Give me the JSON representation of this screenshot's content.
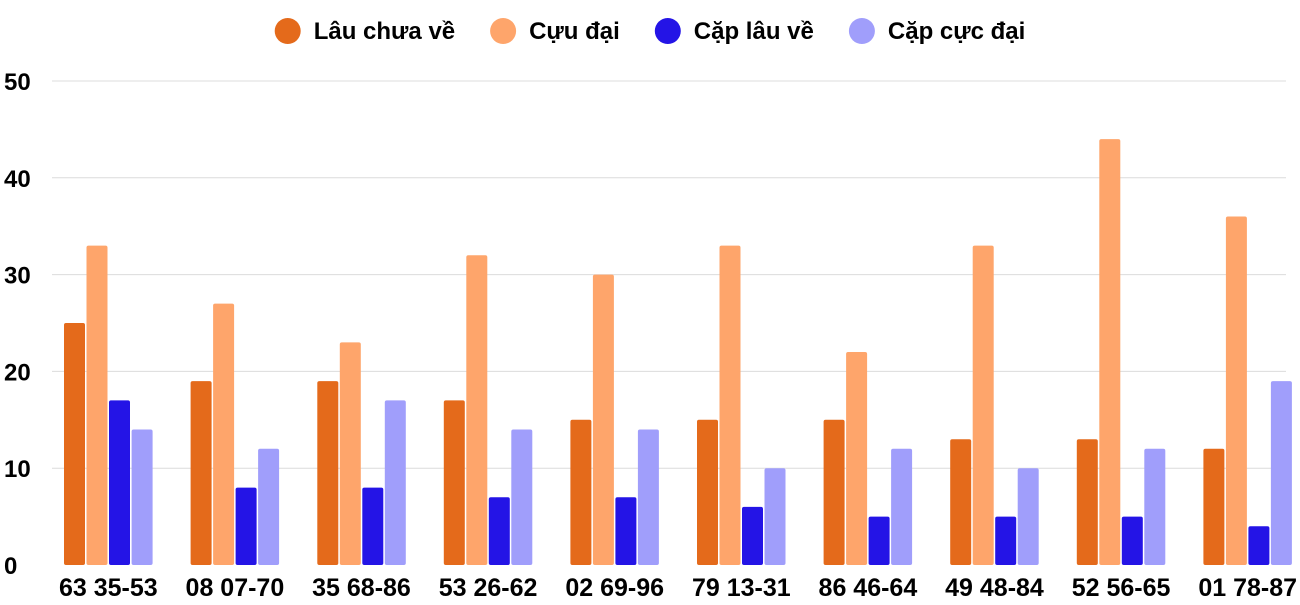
{
  "chart_data": {
    "type": "bar",
    "title": "",
    "xlabel": "",
    "ylabel": "",
    "ylim": [
      0,
      50
    ],
    "yticks": [
      0,
      10,
      20,
      30,
      40,
      50
    ],
    "grid": true,
    "legend_position": "top-center",
    "categories": [
      "63 35-53",
      "08 07-70",
      "35 68-86",
      "53 26-62",
      "02 69-96",
      "79 13-31",
      "86 46-64",
      "49 48-84",
      "52 56-65",
      "01 78-87"
    ],
    "series": [
      {
        "name": "Lâu chưa về",
        "color": "#e46a1b",
        "values": [
          25,
          19,
          19,
          17,
          15,
          15,
          15,
          13,
          13,
          12
        ]
      },
      {
        "name": "Cựu đại",
        "color": "#fea56b",
        "values": [
          33,
          27,
          23,
          32,
          30,
          33,
          22,
          33,
          44,
          36
        ]
      },
      {
        "name": "Cặp lâu về",
        "color": "#2414e6",
        "values": [
          17,
          8,
          8,
          7,
          7,
          6,
          5,
          5,
          5,
          4
        ]
      },
      {
        "name": "Cặp cực đại",
        "color": "#a09efb",
        "values": [
          14,
          12,
          17,
          14,
          14,
          10,
          12,
          10,
          12,
          19
        ]
      }
    ]
  }
}
